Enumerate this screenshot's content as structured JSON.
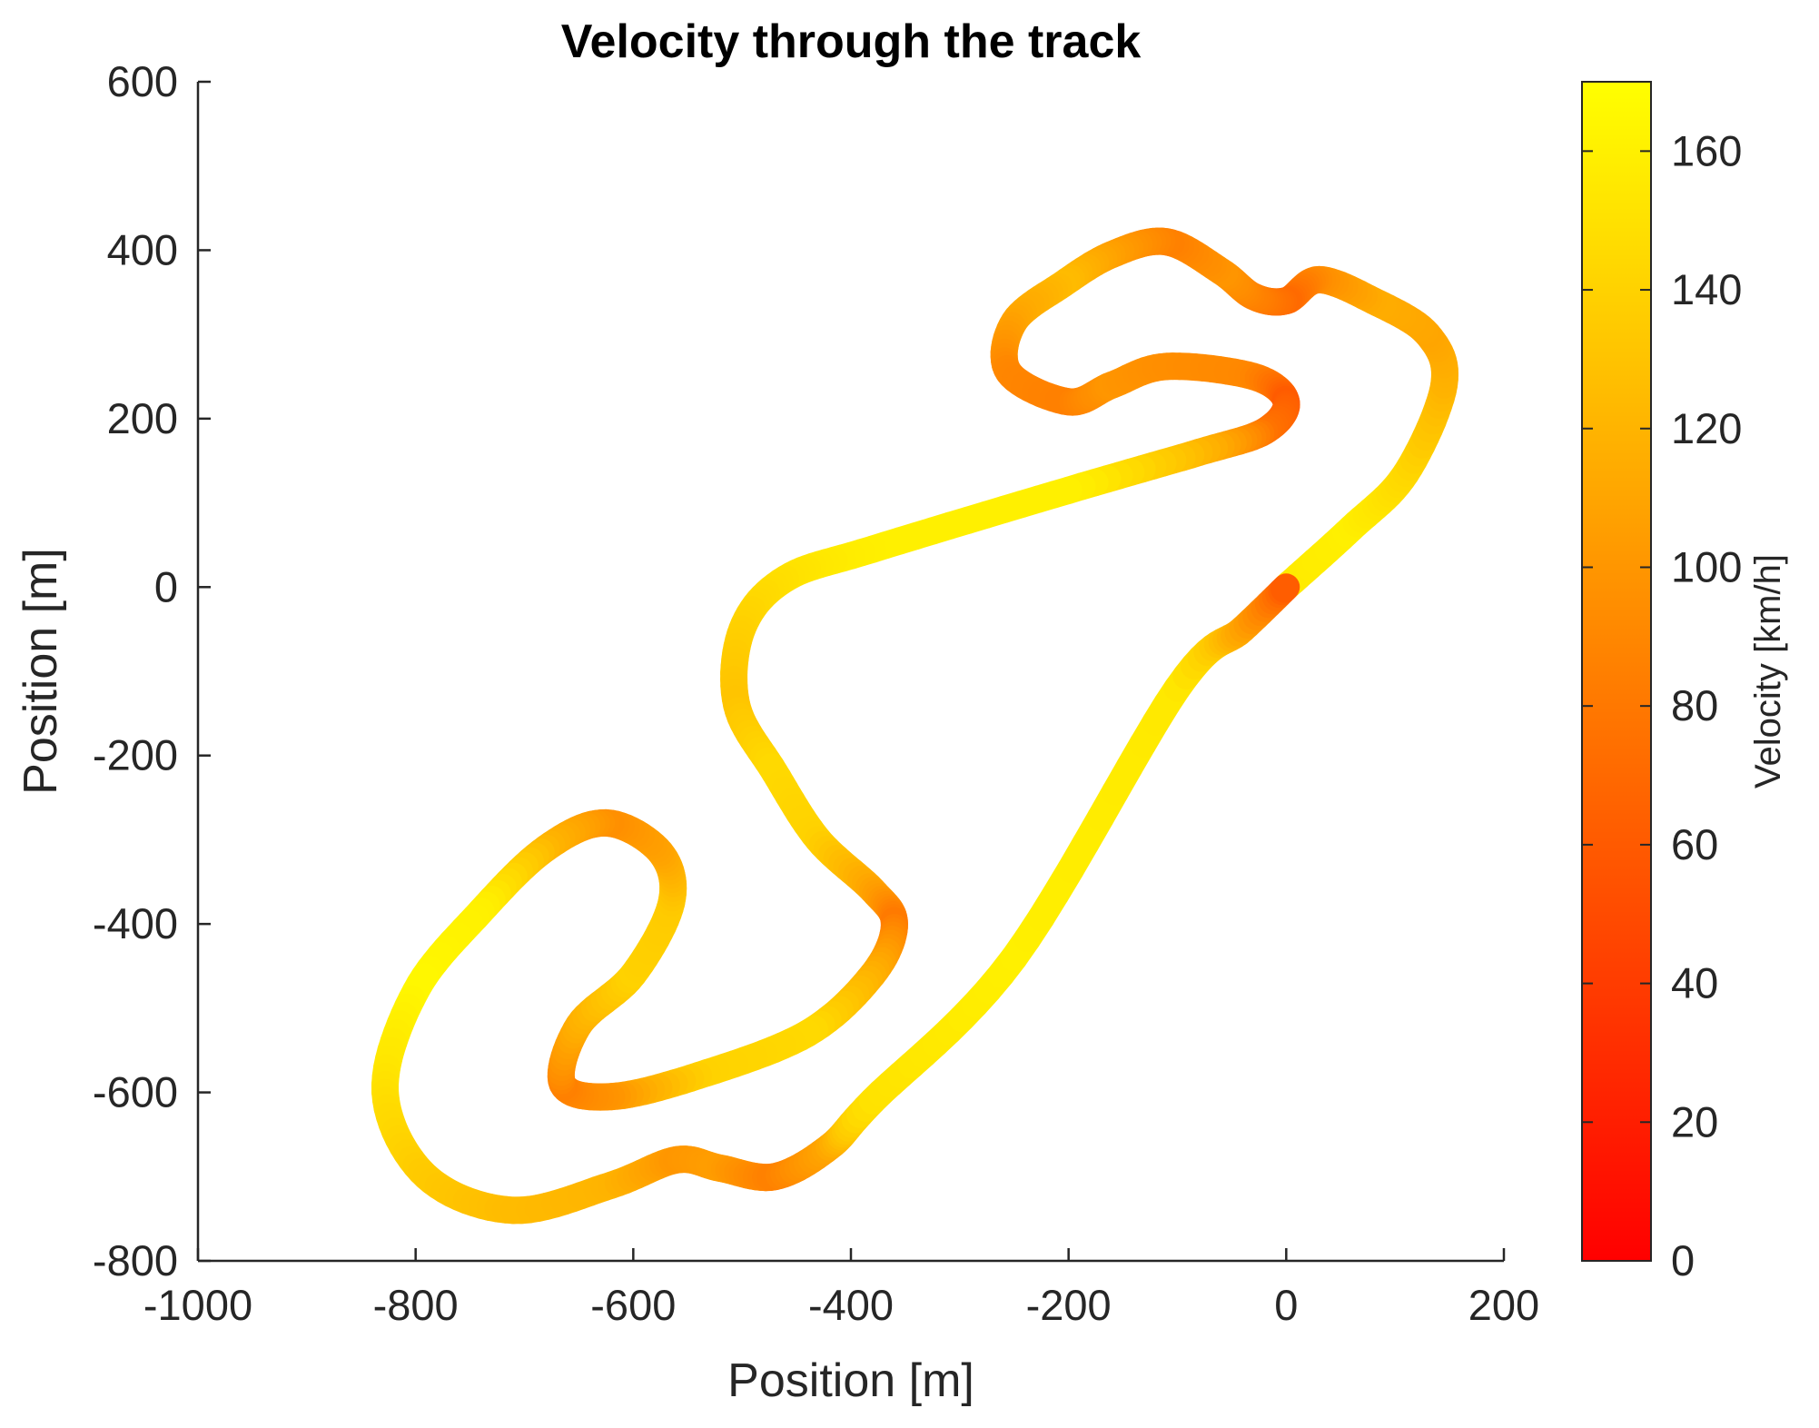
{
  "chart_data": {
    "type": "line",
    "title": "Velocity through the track",
    "xlabel": "Position [m]",
    "ylabel": "Position [m]",
    "xlim": [
      -1000,
      200
    ],
    "ylim": [
      -800,
      600
    ],
    "xticks": [
      -1000,
      -800,
      -600,
      -400,
      -200,
      0,
      200
    ],
    "yticks": [
      600,
      400,
      200,
      0,
      -200,
      -400,
      -600,
      -800
    ],
    "grid": false,
    "colorbar": {
      "label": "Velocity [km/h]",
      "range": [
        0,
        170
      ],
      "ticks": [
        0,
        20,
        40,
        60,
        80,
        100,
        120,
        140,
        160
      ],
      "colormap": "autumn",
      "color_low": "#ff0000",
      "color_high": "#ffff00"
    },
    "track": {
      "description_of_values": "x, y position in metres; v velocity in km/h",
      "points": [
        {
          "x": 0,
          "y": 0,
          "v": 155
        },
        {
          "x": 60,
          "y": 70,
          "v": 160
        },
        {
          "x": 110,
          "y": 135,
          "v": 145
        },
        {
          "x": 145,
          "y": 240,
          "v": 120
        },
        {
          "x": 130,
          "y": 300,
          "v": 110
        },
        {
          "x": 80,
          "y": 340,
          "v": 115
        },
        {
          "x": 30,
          "y": 365,
          "v": 95
        },
        {
          "x": 0,
          "y": 340,
          "v": 70
        },
        {
          "x": -30,
          "y": 345,
          "v": 85
        },
        {
          "x": -60,
          "y": 375,
          "v": 100
        },
        {
          "x": -110,
          "y": 410,
          "v": 85
        },
        {
          "x": -160,
          "y": 395,
          "v": 105
        },
        {
          "x": -205,
          "y": 360,
          "v": 125
        },
        {
          "x": -250,
          "y": 315,
          "v": 110
        },
        {
          "x": -255,
          "y": 255,
          "v": 90
        },
        {
          "x": -200,
          "y": 220,
          "v": 85
        },
        {
          "x": -160,
          "y": 240,
          "v": 100
        },
        {
          "x": -110,
          "y": 262,
          "v": 95
        },
        {
          "x": -30,
          "y": 250,
          "v": 90
        },
        {
          "x": 0,
          "y": 220,
          "v": 60
        },
        {
          "x": -20,
          "y": 185,
          "v": 75
        },
        {
          "x": -80,
          "y": 160,
          "v": 120
        },
        {
          "x": -200,
          "y": 115,
          "v": 160
        },
        {
          "x": -380,
          "y": 45,
          "v": 160
        },
        {
          "x": -460,
          "y": 10,
          "v": 150
        },
        {
          "x": -500,
          "y": -50,
          "v": 140
        },
        {
          "x": -505,
          "y": -140,
          "v": 130
        },
        {
          "x": -470,
          "y": -220,
          "v": 145
        },
        {
          "x": -430,
          "y": -300,
          "v": 140
        },
        {
          "x": -380,
          "y": -360,
          "v": 110
        },
        {
          "x": -360,
          "y": -400,
          "v": 80
        },
        {
          "x": -380,
          "y": -460,
          "v": 115
        },
        {
          "x": -440,
          "y": -530,
          "v": 145
        },
        {
          "x": -540,
          "y": -580,
          "v": 140
        },
        {
          "x": -620,
          "y": -605,
          "v": 100
        },
        {
          "x": -665,
          "y": -590,
          "v": 85
        },
        {
          "x": -650,
          "y": -520,
          "v": 115
        },
        {
          "x": -600,
          "y": -460,
          "v": 140
        },
        {
          "x": -565,
          "y": -375,
          "v": 135
        },
        {
          "x": -575,
          "y": -315,
          "v": 110
        },
        {
          "x": -625,
          "y": -280,
          "v": 95
        },
        {
          "x": -680,
          "y": -310,
          "v": 120
        },
        {
          "x": -740,
          "y": -385,
          "v": 160
        },
        {
          "x": -800,
          "y": -480,
          "v": 165
        },
        {
          "x": -828,
          "y": -600,
          "v": 150
        },
        {
          "x": -790,
          "y": -700,
          "v": 135
        },
        {
          "x": -710,
          "y": -740,
          "v": 125
        },
        {
          "x": -620,
          "y": -710,
          "v": 120
        },
        {
          "x": -560,
          "y": -680,
          "v": 100
        },
        {
          "x": -520,
          "y": -690,
          "v": 105
        },
        {
          "x": -470,
          "y": -700,
          "v": 85
        },
        {
          "x": -420,
          "y": -665,
          "v": 110
        },
        {
          "x": -380,
          "y": -610,
          "v": 150
        },
        {
          "x": -250,
          "y": -440,
          "v": 160
        },
        {
          "x": -100,
          "y": -120,
          "v": 155
        },
        {
          "x": -40,
          "y": -50,
          "v": 110
        },
        {
          "x": 0,
          "y": 0,
          "v": 60
        }
      ]
    }
  }
}
